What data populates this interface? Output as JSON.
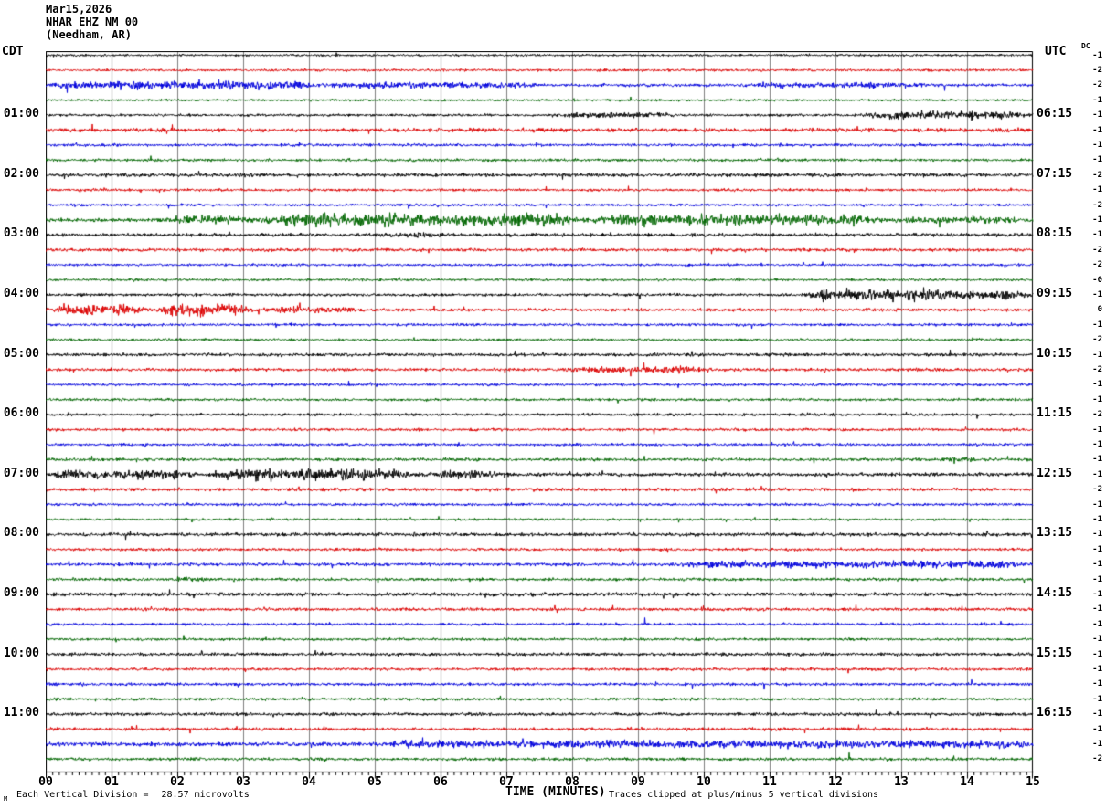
{
  "header": {
    "date_line": "Mar15,2026",
    "station_line": "NHAR EHZ NM 00",
    "location_line": "(Needham, AR)"
  },
  "left_axis": {
    "label": "CDT",
    "times": [
      "01:00",
      "02:00",
      "03:00",
      "04:00",
      "05:00",
      "06:00",
      "07:00",
      "08:00",
      "09:00",
      "10:00",
      "11:00"
    ]
  },
  "right_axis": {
    "label": "UTC",
    "dc_label": "DC",
    "times": [
      "06:15",
      "07:15",
      "08:15",
      "09:15",
      "10:15",
      "11:15",
      "12:15",
      "13:15",
      "14:15",
      "15:15",
      "16:15"
    ],
    "dc_values": [
      "-1",
      "-2",
      "-2",
      "-1",
      "-1",
      "-1",
      "-1",
      "-1",
      "-2",
      "-1",
      "-2",
      "-1",
      "-1",
      "-2",
      "-2",
      "-0",
      "-1",
      "0",
      "-1",
      "-2",
      "-1",
      "-2",
      "-1",
      "-1",
      "-2",
      "-1",
      "-1",
      "-1",
      "-1",
      "-2",
      "-1",
      "-1",
      "-1",
      "-1",
      "-1",
      "-1",
      "-1",
      "-1",
      "-1",
      "-1",
      "-1",
      "-1",
      "-1",
      "-1",
      "-1",
      "-1",
      "-1",
      "-2"
    ]
  },
  "x_axis": {
    "title": "TIME (MINUTES)",
    "ticks": [
      "00",
      "01",
      "02",
      "03",
      "04",
      "05",
      "06",
      "07",
      "08",
      "09",
      "10",
      "11",
      "12",
      "13",
      "14",
      "15"
    ]
  },
  "footer": {
    "scale_label": "Each Vertical Division =",
    "scale_value": "28.57 microvolts",
    "clip_note": "Traces clipped at plus/minus 5 vertical divisions",
    "watermark": "M"
  },
  "colors": {
    "trace_black": "#000000",
    "trace_red": "#dd0000",
    "trace_blue": "#0000dd",
    "trace_green": "#006600",
    "grid": "#808080",
    "frame": "#000000",
    "background": "#ffffff"
  },
  "chart_data": {
    "type": "line",
    "subtype": "helicorder-seismogram",
    "title": "NHAR EHZ NM 00 (Needham, AR) Mar15,2026",
    "xlabel": "TIME (MINUTES)",
    "x_range": [
      0,
      15
    ],
    "minutes_per_row": 15,
    "row_count": 48,
    "grid": "vertical gridlines each minute",
    "legend_position": "none",
    "color_cycle": [
      "black",
      "red",
      "blue",
      "green"
    ],
    "rows": [
      {
        "start_cdt": "00:00",
        "color": "black",
        "dc": "-1",
        "base_amp": 1.2,
        "events": []
      },
      {
        "start_cdt": "00:15",
        "color": "red",
        "dc": "-2",
        "base_amp": 1.3,
        "events": []
      },
      {
        "start_cdt": "00:30",
        "color": "blue",
        "dc": "-2",
        "base_amp": 1.6,
        "events": [
          [
            0,
            4.2,
            2.8
          ],
          [
            4.2,
            7.5,
            1.8
          ],
          [
            10.5,
            13.5,
            1.4
          ]
        ]
      },
      {
        "start_cdt": "00:45",
        "color": "green",
        "dc": "-1",
        "base_amp": 1.2,
        "events": []
      },
      {
        "start_cdt": "01:00",
        "color": "black",
        "dc": "-1",
        "base_amp": 1.4,
        "events": [
          [
            7.6,
            9.6,
            1.6
          ],
          [
            12.4,
            15,
            2.8
          ]
        ]
      },
      {
        "start_cdt": "01:15",
        "color": "red",
        "dc": "-1",
        "base_amp": 2.1,
        "events": []
      },
      {
        "start_cdt": "01:30",
        "color": "blue",
        "dc": "-1",
        "base_amp": 1.5,
        "events": []
      },
      {
        "start_cdt": "01:45",
        "color": "green",
        "dc": "-1",
        "base_amp": 1.5,
        "events": []
      },
      {
        "start_cdt": "02:00",
        "color": "black",
        "dc": "-2",
        "base_amp": 1.9,
        "events": []
      },
      {
        "start_cdt": "02:15",
        "color": "red",
        "dc": "-1",
        "base_amp": 1.4,
        "events": []
      },
      {
        "start_cdt": "02:30",
        "color": "blue",
        "dc": "-2",
        "base_amp": 1.4,
        "events": []
      },
      {
        "start_cdt": "02:45",
        "color": "green",
        "dc": "-1",
        "base_amp": 1.9,
        "events": [
          [
            1.8,
            3.2,
            3.0
          ],
          [
            3.2,
            8.2,
            4.4
          ],
          [
            8.2,
            12.8,
            3.6
          ],
          [
            12.8,
            15,
            2.0
          ]
        ]
      },
      {
        "start_cdt": "03:00",
        "color": "black",
        "dc": "-1",
        "base_amp": 1.8,
        "events": [
          [
            5.1,
            6.1,
            1.6
          ]
        ]
      },
      {
        "start_cdt": "03:15",
        "color": "red",
        "dc": "-2",
        "base_amp": 1.7,
        "events": []
      },
      {
        "start_cdt": "03:30",
        "color": "blue",
        "dc": "-2",
        "base_amp": 1.3,
        "events": []
      },
      {
        "start_cdt": "03:45",
        "color": "green",
        "dc": "-0",
        "base_amp": 1.3,
        "events": []
      },
      {
        "start_cdt": "04:00",
        "color": "black",
        "dc": "-1",
        "base_amp": 1.5,
        "events": [
          [
            11.4,
            15,
            3.8
          ]
        ]
      },
      {
        "start_cdt": "04:15",
        "color": "red",
        "dc": "0",
        "base_amp": 1.7,
        "events": [
          [
            0,
            1.6,
            4.0
          ],
          [
            1.6,
            3.2,
            5.0
          ],
          [
            3.2,
            4.8,
            2.0
          ]
        ]
      },
      {
        "start_cdt": "04:30",
        "color": "blue",
        "dc": "-1",
        "base_amp": 1.4,
        "events": []
      },
      {
        "start_cdt": "04:45",
        "color": "green",
        "dc": "-2",
        "base_amp": 1.3,
        "events": []
      },
      {
        "start_cdt": "05:00",
        "color": "black",
        "dc": "-1",
        "base_amp": 1.7,
        "events": []
      },
      {
        "start_cdt": "05:15",
        "color": "red",
        "dc": "-2",
        "base_amp": 1.6,
        "events": [
          [
            7.8,
            10.2,
            2.0
          ]
        ]
      },
      {
        "start_cdt": "05:30",
        "color": "blue",
        "dc": "-1",
        "base_amp": 1.4,
        "events": []
      },
      {
        "start_cdt": "05:45",
        "color": "green",
        "dc": "-1",
        "base_amp": 1.4,
        "events": []
      },
      {
        "start_cdt": "06:00",
        "color": "black",
        "dc": "-2",
        "base_amp": 1.5,
        "events": []
      },
      {
        "start_cdt": "06:15",
        "color": "red",
        "dc": "-1",
        "base_amp": 1.5,
        "events": []
      },
      {
        "start_cdt": "06:30",
        "color": "blue",
        "dc": "-1",
        "base_amp": 1.4,
        "events": []
      },
      {
        "start_cdt": "06:45",
        "color": "green",
        "dc": "-1",
        "base_amp": 1.6,
        "events": [
          [
            13.5,
            14.2,
            2.2
          ]
        ]
      },
      {
        "start_cdt": "07:00",
        "color": "black",
        "dc": "-1",
        "base_amp": 1.9,
        "events": [
          [
            0,
            2.4,
            3.2
          ],
          [
            2.4,
            5.6,
            4.4
          ],
          [
            5.6,
            7.2,
            2.2
          ]
        ]
      },
      {
        "start_cdt": "07:15",
        "color": "red",
        "dc": "-2",
        "base_amp": 1.8,
        "events": []
      },
      {
        "start_cdt": "07:30",
        "color": "blue",
        "dc": "-1",
        "base_amp": 1.4,
        "events": []
      },
      {
        "start_cdt": "07:45",
        "color": "green",
        "dc": "-1",
        "base_amp": 1.3,
        "events": []
      },
      {
        "start_cdt": "08:00",
        "color": "black",
        "dc": "-1",
        "base_amp": 1.8,
        "events": []
      },
      {
        "start_cdt": "08:15",
        "color": "red",
        "dc": "-1",
        "base_amp": 1.5,
        "events": []
      },
      {
        "start_cdt": "08:30",
        "color": "blue",
        "dc": "-1",
        "base_amp": 1.7,
        "events": [
          [
            9.5,
            15,
            2.2
          ]
        ]
      },
      {
        "start_cdt": "08:45",
        "color": "green",
        "dc": "-1",
        "base_amp": 1.6,
        "events": [
          [
            1.8,
            2.5,
            2.6
          ]
        ]
      },
      {
        "start_cdt": "09:00",
        "color": "black",
        "dc": "-1",
        "base_amp": 2.0,
        "events": []
      },
      {
        "start_cdt": "09:15",
        "color": "red",
        "dc": "-1",
        "base_amp": 1.6,
        "events": []
      },
      {
        "start_cdt": "09:30",
        "color": "blue",
        "dc": "-1",
        "base_amp": 1.5,
        "events": []
      },
      {
        "start_cdt": "09:45",
        "color": "green",
        "dc": "-1",
        "base_amp": 1.4,
        "events": []
      },
      {
        "start_cdt": "10:00",
        "color": "black",
        "dc": "-1",
        "base_amp": 1.7,
        "events": []
      },
      {
        "start_cdt": "10:15",
        "color": "red",
        "dc": "-1",
        "base_amp": 1.5,
        "events": []
      },
      {
        "start_cdt": "10:30",
        "color": "blue",
        "dc": "-1",
        "base_amp": 1.6,
        "events": []
      },
      {
        "start_cdt": "10:45",
        "color": "green",
        "dc": "-1",
        "base_amp": 1.5,
        "events": []
      },
      {
        "start_cdt": "11:00",
        "color": "black",
        "dc": "-1",
        "base_amp": 1.7,
        "events": []
      },
      {
        "start_cdt": "11:15",
        "color": "red",
        "dc": "-1",
        "base_amp": 1.7,
        "events": []
      },
      {
        "start_cdt": "11:30",
        "color": "blue",
        "dc": "-1",
        "base_amp": 2.2,
        "events": [
          [
            5,
            15,
            1.8
          ]
        ]
      },
      {
        "start_cdt": "11:45",
        "color": "green",
        "dc": "-2",
        "base_amp": 1.6,
        "events": []
      }
    ]
  }
}
